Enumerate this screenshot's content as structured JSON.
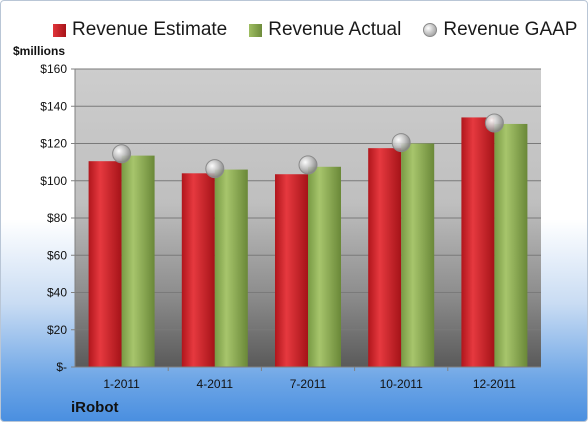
{
  "chart_data": {
    "type": "bar",
    "title": "",
    "unit_label": "$millions",
    "company": "iRobot",
    "categories": [
      "1-2011",
      "4-2011",
      "7-2011",
      "10-2011",
      "12-2011"
    ],
    "series": [
      {
        "name": "Revenue Estimate",
        "kind": "bar",
        "color": "#cc1f26",
        "values": [
          110.5,
          104,
          103.5,
          117.5,
          134
        ]
      },
      {
        "name": "Revenue Actual",
        "kind": "bar",
        "color": "#8cab52",
        "values": [
          113.5,
          106,
          107.5,
          120,
          130.5
        ]
      },
      {
        "name": "Revenue GAAP",
        "kind": "marker",
        "color": "#b0b0b0",
        "values": [
          114.5,
          106.5,
          108.5,
          120.5,
          131
        ]
      }
    ],
    "ylim": [
      0,
      160
    ],
    "yticks": [
      0,
      20,
      40,
      60,
      80,
      100,
      120,
      140,
      160
    ],
    "ytick_labels": [
      "$-",
      "$20",
      "$40",
      "$60",
      "$80",
      "$100",
      "$120",
      "$140",
      "$160"
    ],
    "grid": true,
    "legend_position": "top"
  }
}
